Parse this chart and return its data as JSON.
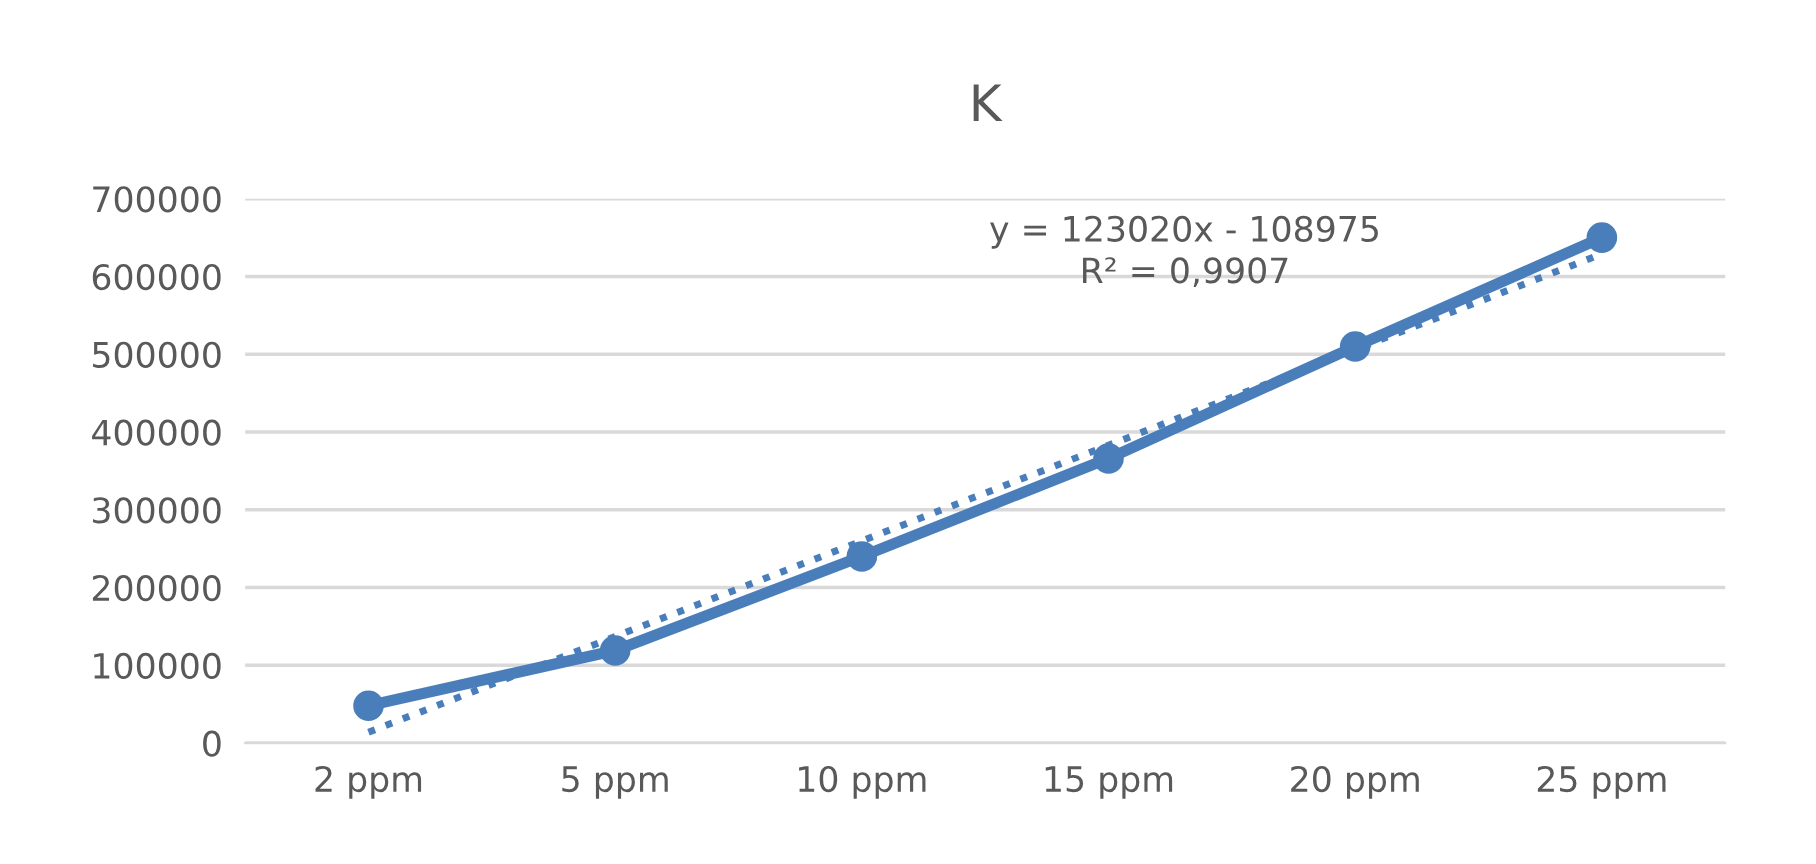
{
  "chart_data": {
    "type": "line",
    "title": "K",
    "categories": [
      "2 ppm",
      "5 ppm",
      "10 ppm",
      "15 ppm",
      "20 ppm",
      "25 ppm"
    ],
    "series": [
      {
        "color": "#4a7ebb",
        "values": [
          48000,
          119000,
          240000,
          366000,
          510000,
          650000
        ],
        "marker": "circle",
        "line_style": "solid"
      },
      {
        "type": "line",
        "color": "#4a7ebb",
        "values": [
          14000,
          137000,
          260000,
          383000,
          506000,
          629000
        ],
        "marker": "none",
        "line_style": "dotted"
      }
    ],
    "annotations": [
      "y = 123020x - 108975\nR² = 0,9907"
    ],
    "ylim": [
      0,
      700000
    ],
    "yticks": [
      0,
      100000,
      200000,
      300000,
      400000,
      500000,
      600000,
      700000
    ],
    "grid": "y"
  }
}
